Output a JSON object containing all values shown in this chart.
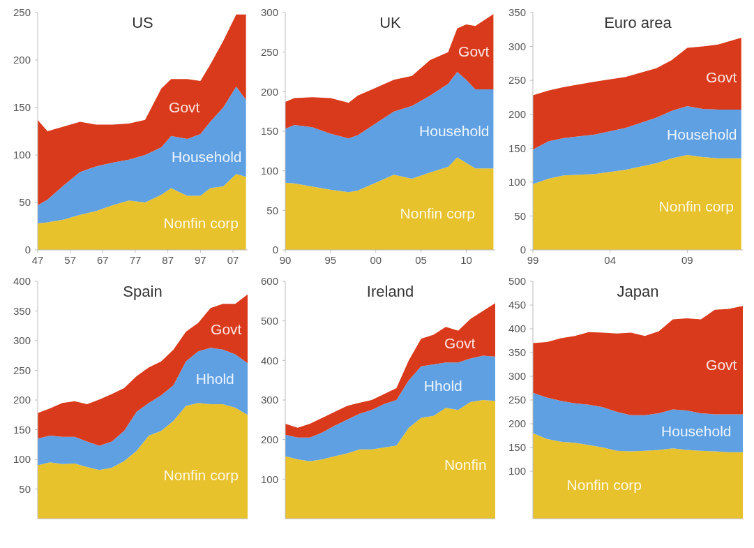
{
  "chart_data": [
    {
      "type": "area",
      "stacked": true,
      "title": "US",
      "x": [
        1947,
        1950,
        1955,
        1960,
        1965,
        1970,
        1975,
        1980,
        1985,
        1988,
        1993,
        1997,
        2000,
        2004,
        2008,
        2011
      ],
      "xlim": [
        1947,
        2011.5
      ],
      "xticks": [
        {
          "value": 1947,
          "label": "47"
        },
        {
          "value": 1957,
          "label": "57"
        },
        {
          "value": 1967,
          "label": "67"
        },
        {
          "value": 1977,
          "label": "77"
        },
        {
          "value": 1987,
          "label": "87"
        },
        {
          "value": 1997,
          "label": "97"
        },
        {
          "value": 2007,
          "label": "07"
        }
      ],
      "ylim": [
        0,
        250
      ],
      "yticks": [
        0,
        50,
        100,
        150,
        200,
        250
      ],
      "series": [
        {
          "name": "Nonfin corp",
          "color": "#e8c22c",
          "values": [
            28,
            29,
            32,
            37,
            41,
            47,
            52,
            50,
            58,
            65,
            57,
            57,
            65,
            67,
            80,
            77
          ]
        },
        {
          "name": "Household",
          "color": "#5fa0e3",
          "values": [
            19,
            24,
            36,
            45,
            47,
            45,
            43,
            50,
            50,
            55,
            60,
            65,
            70,
            83,
            92,
            81
          ]
        },
        {
          "name": "Govt",
          "color": "#da3a1c",
          "values": [
            90,
            72,
            62,
            53,
            44,
            40,
            38,
            37,
            62,
            60,
            63,
            56,
            60,
            70,
            76,
            90
          ]
        }
      ]
    },
    {
      "type": "area",
      "stacked": true,
      "title": "UK",
      "x": [
        1990,
        1991,
        1993,
        1995,
        1997,
        1998,
        2000,
        2002,
        2004,
        2006,
        2008,
        2009,
        2010,
        2011,
        2013
      ],
      "xlim": [
        1990,
        2013.2
      ],
      "xticks": [
        {
          "value": 1990,
          "label": "90"
        },
        {
          "value": 1995,
          "label": "95"
        },
        {
          "value": 2000,
          "label": "00"
        },
        {
          "value": 2005,
          "label": "05"
        },
        {
          "value": 2010,
          "label": "10"
        }
      ],
      "ylim": [
        0,
        300
      ],
      "yticks": [
        0,
        50,
        100,
        150,
        200,
        250,
        300
      ],
      "series": [
        {
          "name": "Nonfin corp",
          "color": "#e8c22c",
          "values": [
            85,
            84,
            80,
            76,
            73,
            75,
            85,
            95,
            90,
            98,
            105,
            117,
            110,
            103,
            103
          ]
        },
        {
          "name": "Household",
          "color": "#5fa0e3",
          "values": [
            68,
            74,
            75,
            71,
            68,
            70,
            75,
            80,
            92,
            97,
            105,
            108,
            105,
            100,
            100
          ]
        },
        {
          "name": "Govt",
          "color": "#da3a1c",
          "values": [
            34,
            34,
            38,
            45,
            45,
            50,
            45,
            40,
            38,
            45,
            40,
            55,
            70,
            80,
            95
          ]
        }
      ]
    },
    {
      "type": "area",
      "stacked": true,
      "title": "Euro area",
      "x": [
        1999,
        2000,
        2001,
        2003,
        2005,
        2007,
        2008,
        2009,
        2010,
        2011,
        2012.5
      ],
      "xlim": [
        1999,
        2012.6
      ],
      "xticks": [
        {
          "value": 1999,
          "label": "99"
        },
        {
          "value": 2004,
          "label": "04"
        },
        {
          "value": 2009,
          "label": "09"
        }
      ],
      "ylim": [
        0,
        350
      ],
      "yticks": [
        0,
        50,
        100,
        150,
        200,
        250,
        300,
        350
      ],
      "series": [
        {
          "name": "Nonfin corp",
          "color": "#e8c22c",
          "values": [
            97,
            105,
            110,
            112,
            118,
            128,
            135,
            140,
            137,
            135,
            135
          ]
        },
        {
          "name": "Household",
          "color": "#5fa0e3",
          "values": [
            51,
            55,
            55,
            58,
            62,
            67,
            70,
            72,
            71,
            72,
            72
          ]
        },
        {
          "name": "Govt",
          "color": "#da3a1c",
          "values": [
            80,
            75,
            75,
            78,
            75,
            73,
            75,
            86,
            92,
            96,
            106
          ]
        }
      ]
    },
    {
      "type": "area",
      "stacked": true,
      "title": "Spain",
      "tick_labels": "y",
      "categories": [
        null,
        null,
        null,
        null,
        null,
        null,
        null,
        null,
        null,
        null,
        null,
        null,
        null,
        null,
        null,
        null,
        null,
        null
      ],
      "ylim": [
        0,
        400
      ],
      "yticks": [
        50,
        100,
        150,
        200,
        250,
        300,
        350,
        400
      ],
      "series": [
        {
          "name": "Nonfin corp",
          "color": "#e8c22c",
          "values": [
            90,
            95,
            92,
            93,
            87,
            82,
            86,
            97,
            114,
            140,
            148,
            165,
            190,
            195,
            193,
            193,
            187,
            175
          ]
        },
        {
          "name": "Hhold",
          "color": "#5fa0e3",
          "values": [
            45,
            45,
            46,
            45,
            43,
            41,
            44,
            51,
            66,
            55,
            60,
            60,
            75,
            87,
            95,
            92,
            90,
            87
          ]
        },
        {
          "name": "Govt",
          "color": "#da3a1c",
          "values": [
            43,
            46,
            57,
            60,
            63,
            78,
            80,
            72,
            60,
            60,
            57,
            60,
            50,
            48,
            67,
            77,
            85,
            116
          ]
        }
      ]
    },
    {
      "type": "area",
      "stacked": true,
      "title": "Ireland",
      "tick_labels": "y",
      "categories": [
        null,
        null,
        null,
        null,
        null,
        null,
        null,
        null,
        null,
        null,
        null,
        null,
        null,
        null,
        null,
        null,
        null,
        null
      ],
      "ylim": [
        0,
        600
      ],
      "yticks": [
        100,
        200,
        300,
        400,
        500,
        600
      ],
      "series": [
        {
          "name": "Nonfin",
          "color": "#e8c22c",
          "values": [
            158,
            150,
            145,
            150,
            158,
            165,
            175,
            175,
            180,
            185,
            230,
            255,
            260,
            280,
            275,
            295,
            300,
            298
          ]
        },
        {
          "name": "Hhold",
          "color": "#5fa0e3",
          "values": [
            54,
            55,
            60,
            68,
            77,
            85,
            90,
            100,
            110,
            115,
            120,
            130,
            130,
            115,
            120,
            110,
            112,
            112
          ]
        },
        {
          "name": "Govt",
          "color": "#da3a1c",
          "values": [
            28,
            25,
            35,
            37,
            35,
            35,
            28,
            25,
            25,
            30,
            50,
            70,
            75,
            90,
            80,
            100,
            113,
            135
          ]
        }
      ]
    },
    {
      "type": "area",
      "stacked": true,
      "title": "Japan",
      "tick_labels": "y",
      "categories": [
        null,
        null,
        null,
        null,
        null,
        null,
        null,
        null,
        null,
        null,
        null,
        null,
        null,
        null,
        null,
        null
      ],
      "ylim": [
        0,
        500
      ],
      "yticks": [
        100,
        150,
        200,
        250,
        300,
        350,
        400,
        450,
        500
      ],
      "series": [
        {
          "name": "Nonfin corp",
          "color": "#e8c22c",
          "values": [
            180,
            168,
            162,
            160,
            155,
            150,
            143,
            142,
            143,
            145,
            148,
            145,
            143,
            142,
            140,
            140
          ]
        },
        {
          "name": "Household",
          "color": "#5fa0e3",
          "values": [
            85,
            87,
            86,
            83,
            85,
            85,
            82,
            76,
            75,
            77,
            82,
            83,
            79,
            78,
            80,
            80
          ]
        },
        {
          "name": "Govt",
          "color": "#da3a1c",
          "values": [
            105,
            117,
            132,
            142,
            153,
            157,
            165,
            174,
            167,
            173,
            190,
            194,
            198,
            220,
            222,
            228
          ]
        }
      ]
    }
  ]
}
